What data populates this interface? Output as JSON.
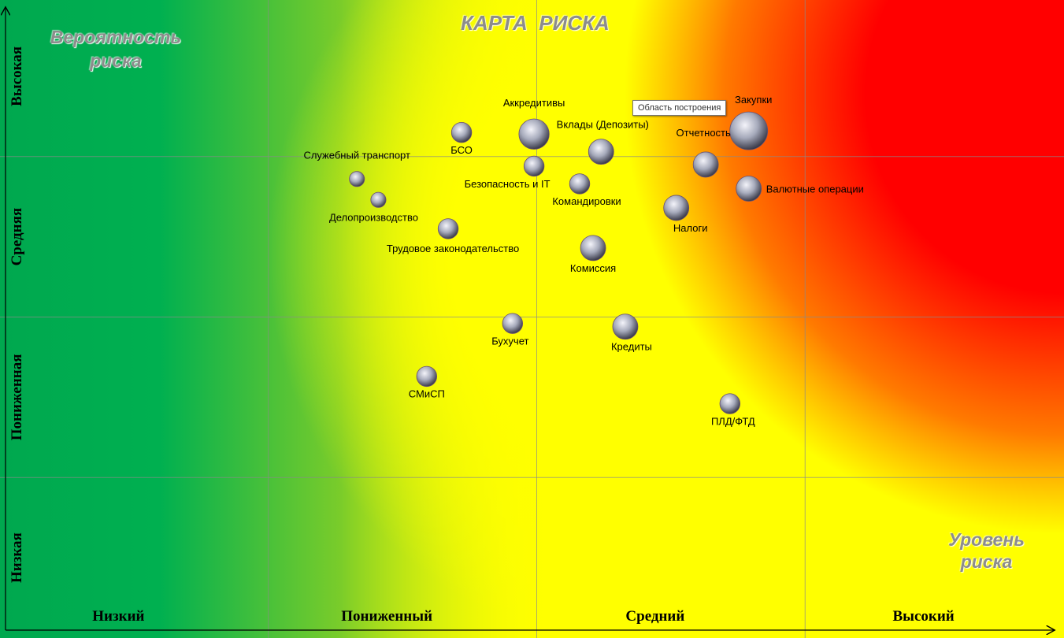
{
  "chart_data": {
    "type": "bubble",
    "title": "КАРТА  РИСКА",
    "ylabel": "Вероятность риска",
    "xlabel": "Уровень риска",
    "x_categories": [
      "Низкий",
      "Пониженный",
      "Средний",
      "Высокий"
    ],
    "y_categories": [
      "Низкая",
      "Пониженная",
      "Средняя",
      "Высокая"
    ],
    "xlim": [
      0,
      4
    ],
    "ylim": [
      0,
      4
    ],
    "grid": true,
    "tooltip": "Область построения",
    "points": [
      {
        "name": "Закупки",
        "x": 2.79,
        "y": 3.16,
        "size": 3.0
      },
      {
        "name": "Аккредитивы",
        "x": 1.99,
        "y": 3.14,
        "size": 2.4
      },
      {
        "name": "БСО",
        "x": 1.72,
        "y": 3.15,
        "size": 1.6
      },
      {
        "name": "Вклады (Депозиты)",
        "x": 2.24,
        "y": 3.03,
        "size": 2.0
      },
      {
        "name": "Отчетность",
        "x": 2.63,
        "y": 2.95,
        "size": 2.0
      },
      {
        "name": "Безопасность и IT",
        "x": 1.99,
        "y": 2.94,
        "size": 1.6
      },
      {
        "name": "Служебный транспорт",
        "x": 1.33,
        "y": 2.86,
        "size": 1.2
      },
      {
        "name": "Командировки",
        "x": 2.16,
        "y": 2.83,
        "size": 1.6
      },
      {
        "name": "Валютные операции",
        "x": 2.79,
        "y": 2.8,
        "size": 2.0
      },
      {
        "name": "Делопроизводство",
        "x": 1.41,
        "y": 2.73,
        "size": 1.2
      },
      {
        "name": "Налоги",
        "x": 2.52,
        "y": 2.68,
        "size": 2.0
      },
      {
        "name": "Трудовое законодательство",
        "x": 1.67,
        "y": 2.55,
        "size": 1.6
      },
      {
        "name": "Комиссия",
        "x": 2.21,
        "y": 2.43,
        "size": 2.0
      },
      {
        "name": "Бухучет",
        "x": 1.91,
        "y": 1.96,
        "size": 1.6
      },
      {
        "name": "Кредиты",
        "x": 2.33,
        "y": 1.94,
        "size": 2.0
      },
      {
        "name": "СМиСП",
        "x": 1.59,
        "y": 1.63,
        "size": 1.6
      },
      {
        "name": "ПЛД/ФТД",
        "x": 2.72,
        "y": 1.46,
        "size": 1.6
      }
    ]
  }
}
